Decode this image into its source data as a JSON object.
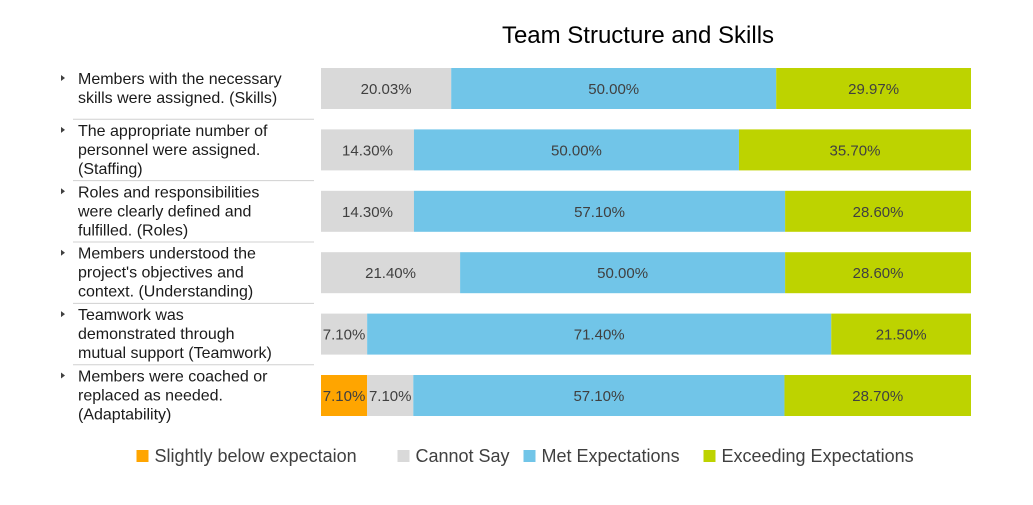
{
  "chart_data": {
    "type": "bar",
    "orientation": "horizontal",
    "stacked": true,
    "percent_scale": true,
    "title": "Team Structure and Skills",
    "categories": [
      [
        "Members with the necessary",
        "skills were assigned. (Skills)"
      ],
      [
        "The appropriate number of",
        "personnel were assigned.",
        "(Staffing)"
      ],
      [
        "Roles and responsibilities",
        "were clearly defined and",
        "fulfilled. (Roles)"
      ],
      [
        "Members understood the",
        "project's objectives and",
        "context. (Understanding)"
      ],
      [
        "Teamwork was",
        "demonstrated through",
        "mutual support (Teamwork)"
      ],
      [
        "Members were coached or",
        "replaced as needed.",
        "(Adaptability)"
      ]
    ],
    "series": [
      {
        "name": "Slightly below expectaion",
        "color": "#FFA500",
        "values": [
          0,
          0,
          0,
          0,
          0,
          7.1
        ],
        "labels": [
          "",
          "",
          "",
          "",
          "",
          "7.10%"
        ]
      },
      {
        "name": "Cannot Say",
        "color": "#D9D9D9",
        "values": [
          20.03,
          14.3,
          14.3,
          21.4,
          7.1,
          7.1
        ],
        "labels": [
          "20.03%",
          "14.30%",
          "14.30%",
          "21.40%",
          "7.10%",
          "7.10%"
        ]
      },
      {
        "name": "Met Expectations",
        "color": "#71C5E8",
        "values": [
          50.0,
          50.0,
          57.1,
          50.0,
          71.4,
          57.1
        ],
        "labels": [
          "50.00%",
          "50.00%",
          "57.10%",
          "50.00%",
          "71.40%",
          "57.10%"
        ]
      },
      {
        "name": "Exceeding Expectations",
        "color": "#BDD300",
        "values": [
          29.97,
          35.7,
          28.6,
          28.6,
          21.5,
          28.7
        ],
        "labels": [
          "29.97%",
          "35.70%",
          "28.60%",
          "28.60%",
          "21.50%",
          "28.70%"
        ]
      }
    ],
    "legend": {
      "position": "bottom"
    },
    "grid": false
  }
}
